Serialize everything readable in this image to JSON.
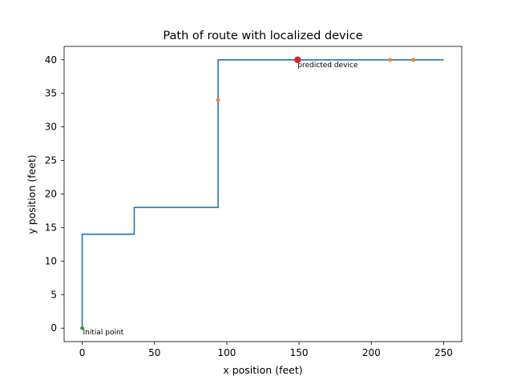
{
  "chart_data": {
    "type": "line",
    "title": "Path of route with localized device",
    "xlabel": "x position (feet)",
    "ylabel": "y position (feet)",
    "xlim": [
      -12.5,
      262.5
    ],
    "ylim": [
      -2,
      42
    ],
    "xticks": [
      0,
      50,
      100,
      150,
      200,
      250
    ],
    "yticks": [
      0,
      5,
      10,
      15,
      20,
      25,
      30,
      35,
      40
    ],
    "grid": false,
    "route": {
      "color": "#1f77b4",
      "x": [
        0,
        0,
        36,
        36,
        94,
        94,
        250
      ],
      "y": [
        0,
        14,
        14,
        18,
        18,
        40,
        40
      ]
    },
    "sample_points": {
      "color": "#ff7f0e",
      "x": [
        94,
        213,
        229
      ],
      "y": [
        34,
        40,
        40
      ]
    },
    "initial_point": {
      "color": "#2ca02c",
      "x": 0,
      "y": 0,
      "label": "Initial point"
    },
    "predicted_device": {
      "color": "#d62728",
      "x": 149,
      "y": 40,
      "label": "predicted device"
    }
  }
}
